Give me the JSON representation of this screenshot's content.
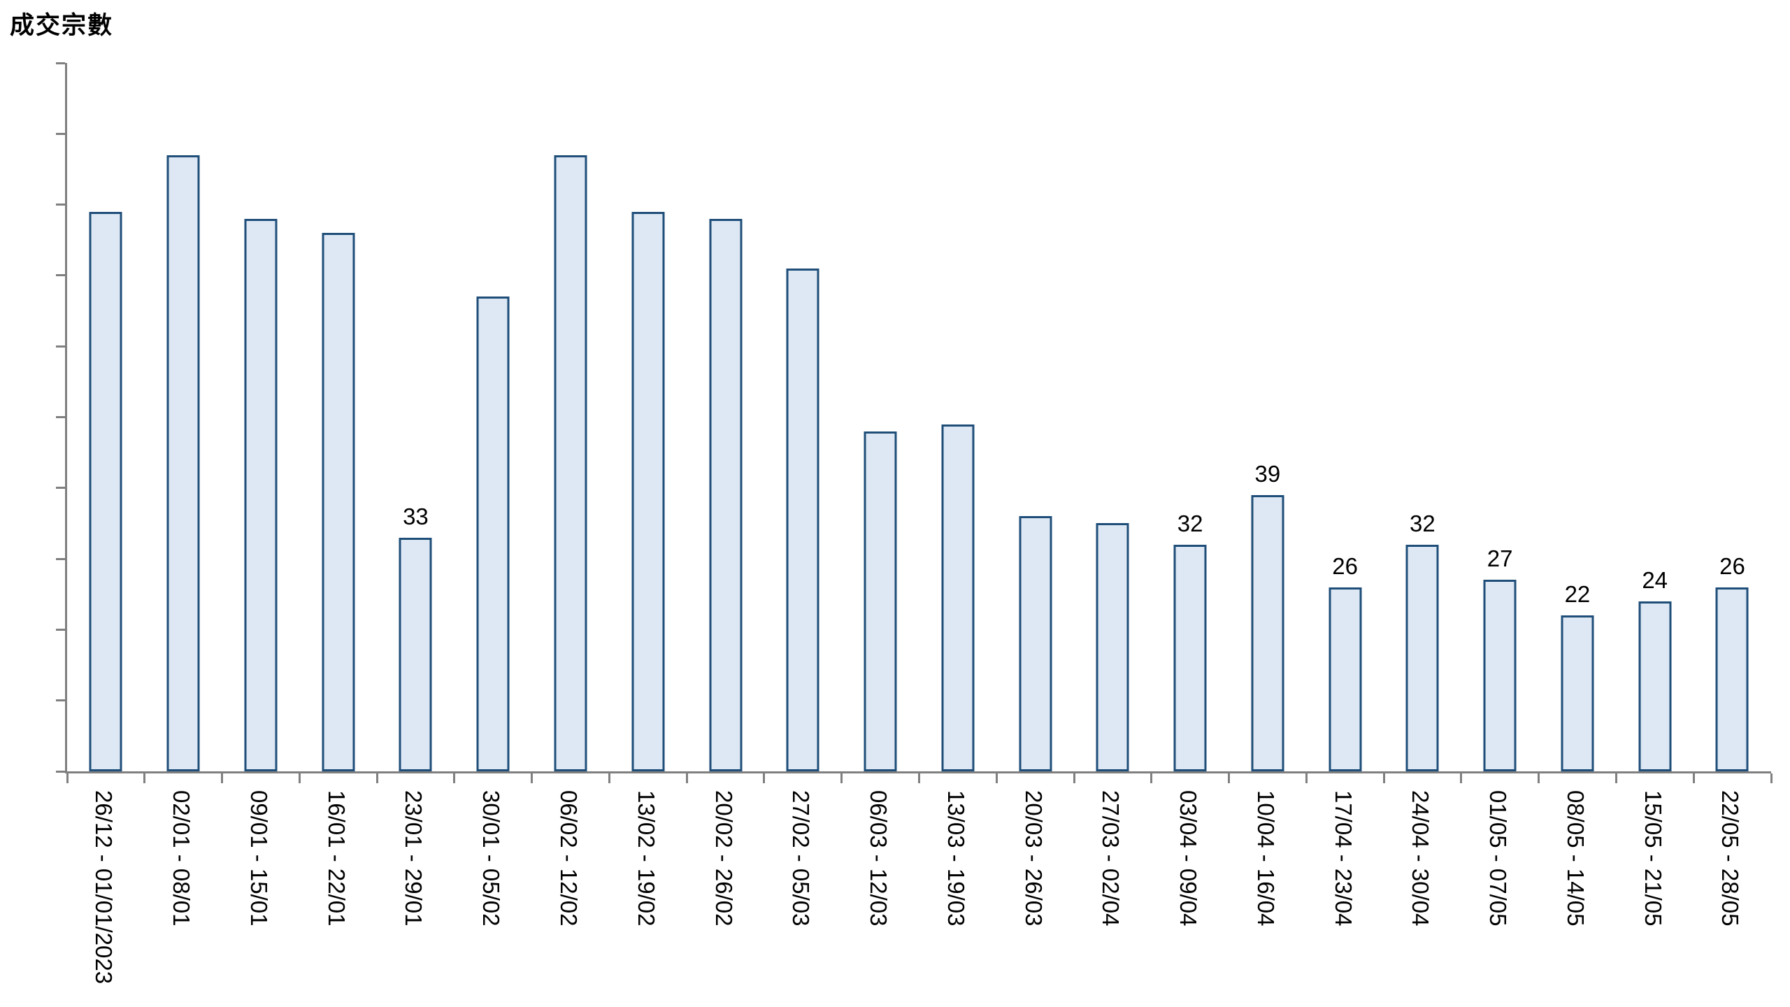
{
  "chart_data": {
    "type": "bar",
    "title": "成交宗數",
    "categories": [
      "26/12 - 01/01/2023",
      "02/01 - 08/01",
      "09/01 - 15/01",
      "16/01 - 22/01",
      "23/01 - 29/01",
      "30/01 - 05/02",
      "06/02 - 12/02",
      "13/02 - 19/02",
      "20/02 - 26/02",
      "27/02 - 05/03",
      "06/03 - 12/03",
      "13/03 - 19/03",
      "20/03 - 26/03",
      "27/03 - 02/04",
      "03/04 - 09/04",
      "10/04 - 16/04",
      "17/04 - 23/04",
      "24/04 - 30/04",
      "01/05 - 07/05",
      "08/05 - 14/05",
      "15/05 - 21/05",
      "22/05 - 28/05"
    ],
    "values": [
      79,
      87,
      78,
      76,
      33,
      67,
      87,
      79,
      78,
      71,
      48,
      49,
      36,
      35,
      32,
      39,
      26,
      32,
      27,
      22,
      24,
      26
    ],
    "value_labels": [
      null,
      null,
      null,
      null,
      "33",
      null,
      null,
      null,
      null,
      null,
      null,
      null,
      null,
      null,
      "32",
      "39",
      "26",
      "32",
      "27",
      "22",
      "24",
      "26"
    ],
    "xlabel": "",
    "ylabel": "成交宗數",
    "ylim": [
      0,
      100
    ],
    "ytick_step": 10,
    "yticks": [
      "0",
      "10",
      "20",
      "30",
      "40",
      "50",
      "60",
      "70",
      "80",
      "90",
      "100"
    ],
    "grid": false,
    "legend": false,
    "colors": {
      "bar_fill": "#dde8f4",
      "bar_border": "#1f4e79",
      "axis": "#808080",
      "text": "#000000"
    }
  }
}
